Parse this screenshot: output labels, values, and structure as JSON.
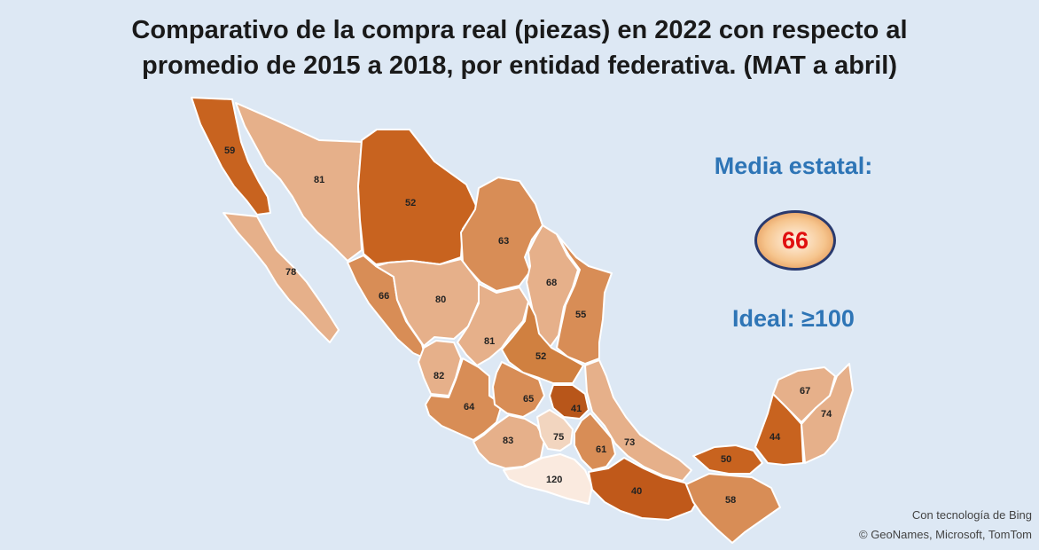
{
  "title": {
    "line1": "Comparativo de la compra real (piezas) en 2022 con respecto al",
    "line2": "promedio de 2015 a 2018, por entidad federativa. (MAT a abril)"
  },
  "legend": {
    "mean_label": "Media estatal:",
    "mean_value": "66",
    "ideal_label": "Ideal: ≥100"
  },
  "credits": {
    "line1": "Con tecnología de Bing",
    "line2": "© GeoNames, Microsoft, TomTom"
  },
  "colors": {
    "background": "#dde8f4",
    "dark": "#c8631f",
    "medium": "#d88d56",
    "light": "#e6b08a",
    "lightest": "#f2d5bf",
    "very_light": "#faeadf",
    "accent_text": "#2e75b6",
    "mean_value": "#e01010"
  },
  "states": [
    {
      "id": "baja-california",
      "value": "59"
    },
    {
      "id": "sonora",
      "value": "81"
    },
    {
      "id": "chihuahua",
      "value": "52"
    },
    {
      "id": "baja-california-sur",
      "value": "78"
    },
    {
      "id": "coahuila",
      "value": "63"
    },
    {
      "id": "sinaloa",
      "value": "66"
    },
    {
      "id": "durango",
      "value": "80"
    },
    {
      "id": "nuevo-leon",
      "value": "68"
    },
    {
      "id": "tamaulipas",
      "value": "55"
    },
    {
      "id": "zacatecas",
      "value": "81"
    },
    {
      "id": "san-luis-potosi",
      "value": "52"
    },
    {
      "id": "nayarit",
      "value": "82"
    },
    {
      "id": "jalisco",
      "value": "64"
    },
    {
      "id": "guanajuato",
      "value": "65"
    },
    {
      "id": "hidalgo",
      "value": "41"
    },
    {
      "id": "michoacan",
      "value": "83"
    },
    {
      "id": "estado-de-mexico",
      "value": "75"
    },
    {
      "id": "puebla",
      "value": "61"
    },
    {
      "id": "veracruz",
      "value": "73"
    },
    {
      "id": "guerrero",
      "value": "120"
    },
    {
      "id": "oaxaca",
      "value": "40"
    },
    {
      "id": "tabasco",
      "value": "50"
    },
    {
      "id": "chiapas",
      "value": "58"
    },
    {
      "id": "campeche",
      "value": "44"
    },
    {
      "id": "yucatan",
      "value": "67"
    },
    {
      "id": "quintana-roo",
      "value": "74"
    }
  ]
}
